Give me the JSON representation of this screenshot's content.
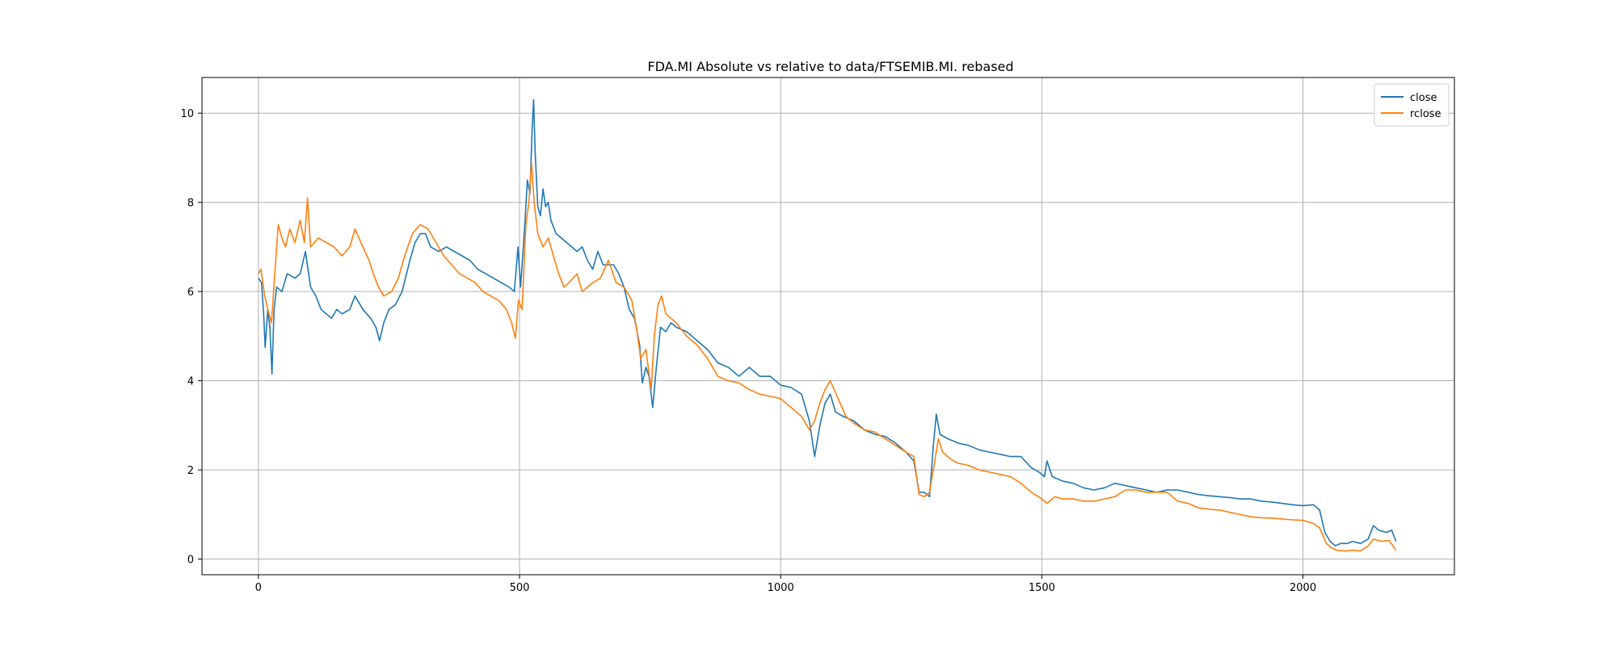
{
  "chart_data": {
    "type": "line",
    "title": "FDA.MI Absolute vs relative to data/FTSEMIB.MI. rebased",
    "xlabel": "",
    "ylabel": "",
    "xlim": [
      -108,
      2290
    ],
    "ylim": [
      -0.35,
      10.8
    ],
    "xticks": [
      0,
      500,
      1000,
      1500,
      2000
    ],
    "yticks": [
      0,
      2,
      4,
      6,
      8,
      10
    ],
    "grid": true,
    "legend": "top-right",
    "series": [
      {
        "name": "close",
        "color": "#1f77b4",
        "points": [
          [
            0,
            6.3
          ],
          [
            6,
            6.2
          ],
          [
            10,
            5.5
          ],
          [
            13,
            4.75
          ],
          [
            18,
            5.6
          ],
          [
            22,
            5.2
          ],
          [
            26,
            4.15
          ],
          [
            30,
            5.6
          ],
          [
            35,
            6.1
          ],
          [
            45,
            6.0
          ],
          [
            55,
            6.4
          ],
          [
            70,
            6.3
          ],
          [
            80,
            6.4
          ],
          [
            90,
            6.9
          ],
          [
            100,
            6.1
          ],
          [
            110,
            5.9
          ],
          [
            120,
            5.6
          ],
          [
            130,
            5.5
          ],
          [
            140,
            5.4
          ],
          [
            150,
            5.6
          ],
          [
            160,
            5.5
          ],
          [
            175,
            5.6
          ],
          [
            185,
            5.9
          ],
          [
            200,
            5.6
          ],
          [
            215,
            5.4
          ],
          [
            225,
            5.2
          ],
          [
            232,
            4.9
          ],
          [
            240,
            5.3
          ],
          [
            250,
            5.6
          ],
          [
            262,
            5.7
          ],
          [
            275,
            6.0
          ],
          [
            290,
            6.7
          ],
          [
            300,
            7.1
          ],
          [
            310,
            7.3
          ],
          [
            320,
            7.3
          ],
          [
            330,
            7.0
          ],
          [
            345,
            6.9
          ],
          [
            360,
            7.0
          ],
          [
            375,
            6.9
          ],
          [
            390,
            6.8
          ],
          [
            405,
            6.7
          ],
          [
            420,
            6.5
          ],
          [
            435,
            6.4
          ],
          [
            450,
            6.3
          ],
          [
            465,
            6.2
          ],
          [
            480,
            6.1
          ],
          [
            490,
            6.0
          ],
          [
            497,
            7.0
          ],
          [
            502,
            6.1
          ],
          [
            510,
            7.5
          ],
          [
            515,
            8.5
          ],
          [
            520,
            8.2
          ],
          [
            524,
            9.6
          ],
          [
            527,
            10.3
          ],
          [
            530,
            9.1
          ],
          [
            535,
            7.9
          ],
          [
            540,
            7.7
          ],
          [
            545,
            8.3
          ],
          [
            550,
            7.9
          ],
          [
            555,
            8.0
          ],
          [
            560,
            7.6
          ],
          [
            570,
            7.3
          ],
          [
            580,
            7.2
          ],
          [
            590,
            7.1
          ],
          [
            600,
            7.0
          ],
          [
            610,
            6.9
          ],
          [
            620,
            7.0
          ],
          [
            630,
            6.7
          ],
          [
            640,
            6.5
          ],
          [
            650,
            6.9
          ],
          [
            660,
            6.6
          ],
          [
            670,
            6.6
          ],
          [
            680,
            6.6
          ],
          [
            690,
            6.4
          ],
          [
            700,
            6.1
          ],
          [
            710,
            5.6
          ],
          [
            720,
            5.4
          ],
          [
            730,
            4.8
          ],
          [
            735,
            3.95
          ],
          [
            742,
            4.3
          ],
          [
            748,
            4.1
          ],
          [
            755,
            3.4
          ],
          [
            762,
            4.3
          ],
          [
            770,
            5.2
          ],
          [
            780,
            5.1
          ],
          [
            790,
            5.3
          ],
          [
            800,
            5.2
          ],
          [
            820,
            5.1
          ],
          [
            840,
            4.9
          ],
          [
            860,
            4.7
          ],
          [
            880,
            4.4
          ],
          [
            900,
            4.3
          ],
          [
            920,
            4.1
          ],
          [
            940,
            4.3
          ],
          [
            960,
            4.1
          ],
          [
            980,
            4.1
          ],
          [
            1000,
            3.9
          ],
          [
            1020,
            3.85
          ],
          [
            1040,
            3.7
          ],
          [
            1055,
            3.1
          ],
          [
            1065,
            2.3
          ],
          [
            1075,
            3.0
          ],
          [
            1085,
            3.5
          ],
          [
            1095,
            3.7
          ],
          [
            1105,
            3.3
          ],
          [
            1120,
            3.2
          ],
          [
            1140,
            3.1
          ],
          [
            1160,
            2.9
          ],
          [
            1180,
            2.8
          ],
          [
            1200,
            2.75
          ],
          [
            1220,
            2.6
          ],
          [
            1240,
            2.4
          ],
          [
            1255,
            2.2
          ],
          [
            1265,
            1.5
          ],
          [
            1275,
            1.5
          ],
          [
            1285,
            1.4
          ],
          [
            1292,
            2.5
          ],
          [
            1298,
            3.25
          ],
          [
            1305,
            2.8
          ],
          [
            1320,
            2.7
          ],
          [
            1340,
            2.6
          ],
          [
            1360,
            2.55
          ],
          [
            1380,
            2.45
          ],
          [
            1400,
            2.4
          ],
          [
            1420,
            2.35
          ],
          [
            1440,
            2.3
          ],
          [
            1460,
            2.3
          ],
          [
            1480,
            2.05
          ],
          [
            1495,
            1.95
          ],
          [
            1505,
            1.85
          ],
          [
            1510,
            2.2
          ],
          [
            1520,
            1.85
          ],
          [
            1540,
            1.75
          ],
          [
            1560,
            1.7
          ],
          [
            1580,
            1.6
          ],
          [
            1600,
            1.55
          ],
          [
            1620,
            1.6
          ],
          [
            1640,
            1.7
          ],
          [
            1660,
            1.65
          ],
          [
            1680,
            1.6
          ],
          [
            1700,
            1.55
          ],
          [
            1720,
            1.5
          ],
          [
            1740,
            1.55
          ],
          [
            1760,
            1.55
          ],
          [
            1780,
            1.5
          ],
          [
            1800,
            1.45
          ],
          [
            1820,
            1.42
          ],
          [
            1840,
            1.4
          ],
          [
            1860,
            1.38
          ],
          [
            1880,
            1.35
          ],
          [
            1900,
            1.35
          ],
          [
            1920,
            1.3
          ],
          [
            1940,
            1.28
          ],
          [
            1960,
            1.25
          ],
          [
            1980,
            1.22
          ],
          [
            2000,
            1.2
          ],
          [
            2020,
            1.22
          ],
          [
            2032,
            1.1
          ],
          [
            2042,
            0.6
          ],
          [
            2052,
            0.4
          ],
          [
            2062,
            0.3
          ],
          [
            2072,
            0.35
          ],
          [
            2085,
            0.35
          ],
          [
            2095,
            0.4
          ],
          [
            2110,
            0.35
          ],
          [
            2125,
            0.45
          ],
          [
            2135,
            0.75
          ],
          [
            2145,
            0.65
          ],
          [
            2160,
            0.6
          ],
          [
            2170,
            0.65
          ],
          [
            2178,
            0.4
          ]
        ]
      },
      {
        "name": "rclose",
        "color": "#ff7f0e",
        "points": [
          [
            0,
            6.4
          ],
          [
            5,
            6.5
          ],
          [
            12,
            5.9
          ],
          [
            18,
            5.6
          ],
          [
            25,
            5.3
          ],
          [
            32,
            6.5
          ],
          [
            38,
            7.5
          ],
          [
            45,
            7.2
          ],
          [
            52,
            7.0
          ],
          [
            60,
            7.4
          ],
          [
            70,
            7.1
          ],
          [
            80,
            7.6
          ],
          [
            88,
            7.1
          ],
          [
            94,
            8.1
          ],
          [
            100,
            7.0
          ],
          [
            115,
            7.2
          ],
          [
            130,
            7.1
          ],
          [
            145,
            7.0
          ],
          [
            160,
            6.8
          ],
          [
            175,
            7.0
          ],
          [
            185,
            7.4
          ],
          [
            200,
            7.0
          ],
          [
            212,
            6.7
          ],
          [
            220,
            6.4
          ],
          [
            230,
            6.1
          ],
          [
            240,
            5.9
          ],
          [
            255,
            6.0
          ],
          [
            268,
            6.3
          ],
          [
            280,
            6.8
          ],
          [
            295,
            7.3
          ],
          [
            310,
            7.5
          ],
          [
            325,
            7.4
          ],
          [
            340,
            7.1
          ],
          [
            355,
            6.8
          ],
          [
            370,
            6.6
          ],
          [
            385,
            6.4
          ],
          [
            400,
            6.3
          ],
          [
            415,
            6.2
          ],
          [
            430,
            6.0
          ],
          [
            445,
            5.9
          ],
          [
            460,
            5.8
          ],
          [
            475,
            5.6
          ],
          [
            485,
            5.3
          ],
          [
            492,
            4.95
          ],
          [
            498,
            5.8
          ],
          [
            505,
            5.6
          ],
          [
            512,
            7.5
          ],
          [
            518,
            8.0
          ],
          [
            523,
            8.9
          ],
          [
            528,
            8.0
          ],
          [
            535,
            7.3
          ],
          [
            545,
            7.0
          ],
          [
            555,
            7.2
          ],
          [
            565,
            6.8
          ],
          [
            575,
            6.4
          ],
          [
            585,
            6.1
          ],
          [
            595,
            6.2
          ],
          [
            610,
            6.4
          ],
          [
            620,
            6.0
          ],
          [
            630,
            6.1
          ],
          [
            640,
            6.2
          ],
          [
            655,
            6.3
          ],
          [
            670,
            6.7
          ],
          [
            685,
            6.2
          ],
          [
            700,
            6.1
          ],
          [
            715,
            5.8
          ],
          [
            725,
            5.1
          ],
          [
            732,
            4.5
          ],
          [
            742,
            4.7
          ],
          [
            752,
            3.8
          ],
          [
            758,
            5.0
          ],
          [
            765,
            5.7
          ],
          [
            772,
            5.9
          ],
          [
            780,
            5.5
          ],
          [
            790,
            5.4
          ],
          [
            800,
            5.3
          ],
          [
            820,
            5.0
          ],
          [
            840,
            4.8
          ],
          [
            860,
            4.5
          ],
          [
            880,
            4.1
          ],
          [
            900,
            4.0
          ],
          [
            920,
            3.95
          ],
          [
            940,
            3.8
          ],
          [
            960,
            3.7
          ],
          [
            980,
            3.65
          ],
          [
            1000,
            3.6
          ],
          [
            1020,
            3.4
          ],
          [
            1040,
            3.2
          ],
          [
            1055,
            2.9
          ],
          [
            1065,
            3.1
          ],
          [
            1075,
            3.5
          ],
          [
            1085,
            3.8
          ],
          [
            1095,
            4.0
          ],
          [
            1110,
            3.6
          ],
          [
            1125,
            3.2
          ],
          [
            1140,
            3.05
          ],
          [
            1160,
            2.9
          ],
          [
            1180,
            2.85
          ],
          [
            1200,
            2.7
          ],
          [
            1220,
            2.55
          ],
          [
            1240,
            2.4
          ],
          [
            1255,
            2.3
          ],
          [
            1265,
            1.45
          ],
          [
            1275,
            1.4
          ],
          [
            1285,
            1.5
          ],
          [
            1295,
            2.2
          ],
          [
            1302,
            2.7
          ],
          [
            1310,
            2.4
          ],
          [
            1325,
            2.25
          ],
          [
            1340,
            2.15
          ],
          [
            1360,
            2.1
          ],
          [
            1380,
            2.0
          ],
          [
            1400,
            1.95
          ],
          [
            1420,
            1.9
          ],
          [
            1440,
            1.85
          ],
          [
            1460,
            1.7
          ],
          [
            1480,
            1.5
          ],
          [
            1500,
            1.35
          ],
          [
            1510,
            1.25
          ],
          [
            1525,
            1.4
          ],
          [
            1540,
            1.35
          ],
          [
            1560,
            1.35
          ],
          [
            1580,
            1.3
          ],
          [
            1600,
            1.3
          ],
          [
            1620,
            1.35
          ],
          [
            1640,
            1.4
          ],
          [
            1660,
            1.55
          ],
          [
            1680,
            1.55
          ],
          [
            1700,
            1.5
          ],
          [
            1720,
            1.5
          ],
          [
            1740,
            1.5
          ],
          [
            1760,
            1.3
          ],
          [
            1780,
            1.25
          ],
          [
            1800,
            1.15
          ],
          [
            1820,
            1.12
          ],
          [
            1840,
            1.1
          ],
          [
            1860,
            1.05
          ],
          [
            1880,
            1.0
          ],
          [
            1900,
            0.95
          ],
          [
            1920,
            0.93
          ],
          [
            1940,
            0.92
          ],
          [
            1960,
            0.9
          ],
          [
            1980,
            0.88
          ],
          [
            2000,
            0.87
          ],
          [
            2020,
            0.8
          ],
          [
            2032,
            0.7
          ],
          [
            2045,
            0.35
          ],
          [
            2055,
            0.25
          ],
          [
            2065,
            0.2
          ],
          [
            2080,
            0.18
          ],
          [
            2095,
            0.2
          ],
          [
            2110,
            0.18
          ],
          [
            2125,
            0.3
          ],
          [
            2135,
            0.45
          ],
          [
            2150,
            0.4
          ],
          [
            2165,
            0.42
          ],
          [
            2178,
            0.2
          ]
        ]
      }
    ]
  }
}
